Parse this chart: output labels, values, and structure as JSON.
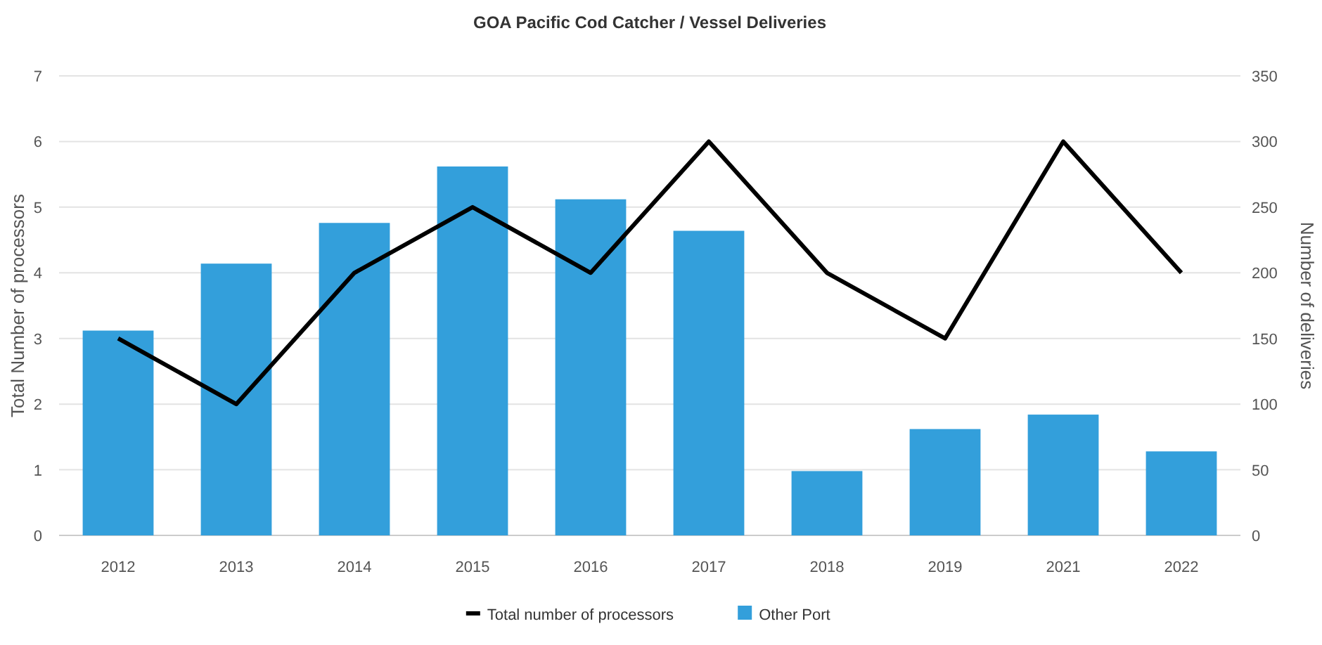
{
  "chart_data": {
    "type": "bar",
    "title": "GOA Pacific Cod Catcher / Vessel Deliveries",
    "ylabel": "Total Number of processors",
    "y2label": "Number of deliveries",
    "categories": [
      "2012",
      "2013",
      "2014",
      "2015",
      "2016",
      "2017",
      "2018",
      "2019",
      "2021",
      "2022"
    ],
    "series": [
      {
        "name": "Total number of processors",
        "type": "line",
        "color": "#000000",
        "values": [
          3,
          2,
          4,
          5,
          4,
          6,
          4,
          3,
          6,
          4
        ]
      },
      {
        "name": "Other Port",
        "axis": "y2",
        "color": "#339fdb",
        "values": [
          156,
          207,
          238,
          281,
          256,
          232,
          49,
          81,
          92,
          64
        ]
      }
    ],
    "ylim": [
      0,
      7
    ],
    "yticks": [
      0,
      1,
      2,
      3,
      4,
      5,
      6,
      7
    ],
    "y2lim": [
      0,
      350
    ],
    "y2ticks": [
      0,
      50,
      100,
      150,
      200,
      250,
      300,
      350
    ],
    "grid": "y",
    "legend": "bottom",
    "marker": "none",
    "line_style": "solid"
  }
}
